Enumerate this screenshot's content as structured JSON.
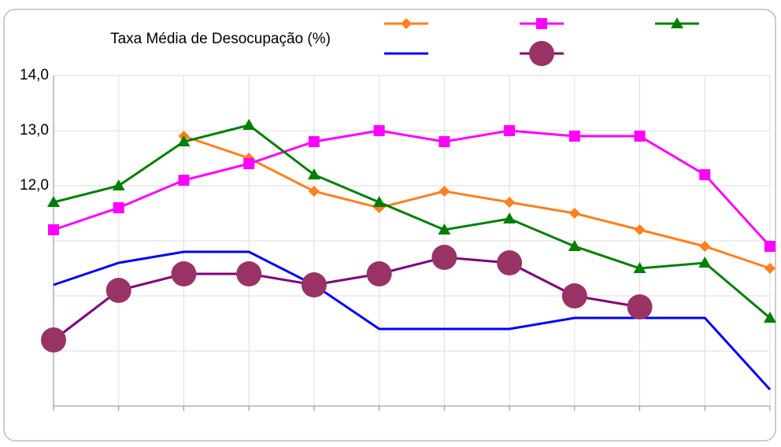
{
  "chart_data": {
    "type": "line",
    "title": "Taxa Média de Desocupação (%)",
    "categories": [
      null,
      null,
      null,
      null,
      null,
      null,
      null,
      null,
      null,
      null,
      null,
      null
    ],
    "ylim": [
      8,
      14
    ],
    "yticks": [
      {
        "value": 12,
        "label": "12,0"
      },
      {
        "value": 13,
        "label": "13,0"
      },
      {
        "value": 14,
        "label": "14,0"
      }
    ],
    "yminor": [
      9,
      10,
      11
    ],
    "grid": true,
    "series": [
      {
        "color": "#ff7f1e",
        "marker": "diamond",
        "values": [
          null,
          null,
          12.9,
          12.5,
          11.9,
          11.6,
          11.9,
          11.7,
          11.5,
          11.2,
          10.9,
          10.5
        ]
      },
      {
        "color": "#ff00ff",
        "marker": "square",
        "values": [
          11.2,
          11.6,
          12.1,
          12.4,
          12.8,
          13.0,
          12.8,
          13.0,
          12.9,
          12.9,
          12.2,
          10.9
        ]
      },
      {
        "color": "#008000",
        "marker": "triangle",
        "values": [
          11.7,
          12.0,
          12.8,
          13.1,
          12.2,
          11.7,
          11.2,
          11.4,
          10.9,
          10.5,
          10.6,
          9.6
        ]
      },
      {
        "color": "#0000ff",
        "marker": "none",
        "values": [
          10.2,
          10.6,
          10.8,
          10.8,
          10.2,
          9.4,
          9.4,
          9.4,
          9.6,
          9.6,
          9.6,
          8.3
        ]
      },
      {
        "color": "#800080",
        "marker": "circle",
        "values": [
          9.2,
          10.1,
          10.4,
          10.4,
          10.2,
          10.4,
          10.7,
          10.6,
          10.0,
          9.8,
          null,
          null
        ]
      }
    ]
  }
}
